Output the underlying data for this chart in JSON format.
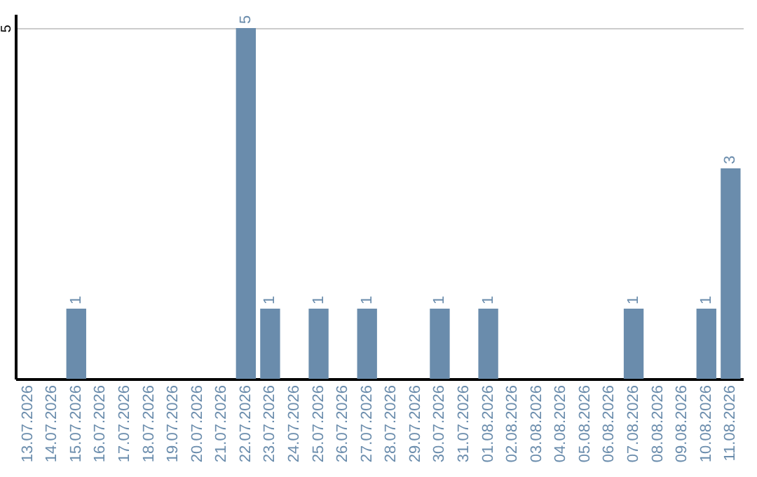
{
  "chart_data": {
    "type": "bar",
    "categories": [
      "13.07.2026",
      "14.07.2026",
      "15.07.2026",
      "16.07.2026",
      "17.07.2026",
      "18.07.2026",
      "19.07.2026",
      "20.07.2026",
      "21.07.2026",
      "22.07.2026",
      "23.07.2026",
      "24.07.2026",
      "25.07.2026",
      "26.07.2026",
      "27.07.2026",
      "28.07.2026",
      "29.07.2026",
      "30.07.2026",
      "31.07.2026",
      "01.08.2026",
      "02.08.2026",
      "03.08.2026",
      "04.08.2026",
      "05.08.2026",
      "06.08.2026",
      "07.08.2026",
      "08.08.2026",
      "09.08.2026",
      "10.08.2026",
      "11.08.2026"
    ],
    "values": [
      0,
      0,
      1,
      0,
      0,
      0,
      0,
      0,
      0,
      5,
      1,
      0,
      1,
      0,
      1,
      0,
      0,
      1,
      0,
      1,
      0,
      0,
      0,
      0,
      0,
      1,
      0,
      0,
      1,
      3
    ],
    "value_labels": [
      null,
      null,
      "1",
      null,
      null,
      null,
      null,
      null,
      null,
      "5",
      "1",
      null,
      "1",
      null,
      "1",
      null,
      null,
      "1",
      null,
      "1",
      null,
      null,
      null,
      null,
      null,
      "1",
      null,
      null,
      "1",
      "3"
    ],
    "color": "#6a8cac",
    "ylim": [
      0,
      5.2
    ],
    "yticks": [
      5
    ],
    "grid": "y"
  }
}
